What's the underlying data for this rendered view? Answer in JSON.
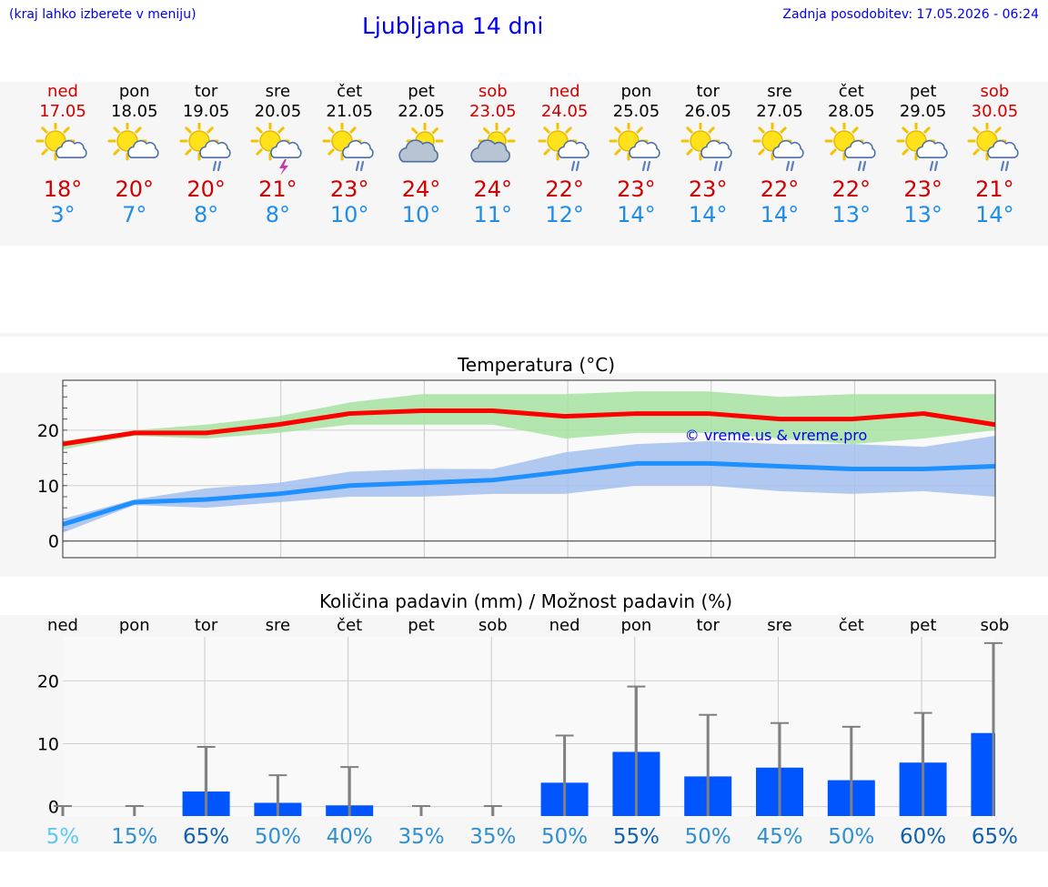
{
  "header": {
    "hint": "(kraj lahko izberete v meniju)",
    "title": "Ljubljana 14 dni",
    "updated": "Zadnja posodobitev: 17.05.2026 - 06:24"
  },
  "days": [
    {
      "name": "ned",
      "date": "17.05",
      "weekend": true,
      "icon": "partly-cloudy-icon",
      "tmax": "18°",
      "tmin": "3°"
    },
    {
      "name": "pon",
      "date": "18.05",
      "weekend": false,
      "icon": "partly-cloudy-icon",
      "tmax": "20°",
      "tmin": "7°"
    },
    {
      "name": "tor",
      "date": "19.05",
      "weekend": false,
      "icon": "cloudy-rain-icon",
      "tmax": "20°",
      "tmin": "8°"
    },
    {
      "name": "sre",
      "date": "20.05",
      "weekend": false,
      "icon": "thunderstorm-icon",
      "tmax": "21°",
      "tmin": "8°"
    },
    {
      "name": "čet",
      "date": "21.05",
      "weekend": false,
      "icon": "cloudy-rain-icon",
      "tmax": "23°",
      "tmin": "10°"
    },
    {
      "name": "pet",
      "date": "22.05",
      "weekend": false,
      "icon": "mostly-cloudy-icon",
      "tmax": "24°",
      "tmin": "10°"
    },
    {
      "name": "sob",
      "date": "23.05",
      "weekend": true,
      "icon": "mostly-cloudy-icon",
      "tmax": "24°",
      "tmin": "11°"
    },
    {
      "name": "ned",
      "date": "24.05",
      "weekend": true,
      "icon": "cloudy-rain-icon",
      "tmax": "22°",
      "tmin": "12°"
    },
    {
      "name": "pon",
      "date": "25.05",
      "weekend": false,
      "icon": "cloudy-rain-icon",
      "tmax": "23°",
      "tmin": "14°"
    },
    {
      "name": "tor",
      "date": "26.05",
      "weekend": false,
      "icon": "cloudy-rain-icon",
      "tmax": "23°",
      "tmin": "14°"
    },
    {
      "name": "sre",
      "date": "27.05",
      "weekend": false,
      "icon": "cloudy-rain-icon",
      "tmax": "22°",
      "tmin": "14°"
    },
    {
      "name": "čet",
      "date": "28.05",
      "weekend": false,
      "icon": "cloudy-rain-icon",
      "tmax": "22°",
      "tmin": "13°"
    },
    {
      "name": "pet",
      "date": "29.05",
      "weekend": false,
      "icon": "cloudy-rain-icon",
      "tmax": "23°",
      "tmin": "13°"
    },
    {
      "name": "sob",
      "date": "30.05",
      "weekend": true,
      "icon": "cloudy-rain-icon",
      "tmax": "21°",
      "tmin": "14°"
    }
  ],
  "colors": {
    "title_blue": "#0000ee",
    "weekend_red": "#d00000",
    "max_line": "#ff0000",
    "max_band": "#a6e3a1",
    "min_line": "#1e90ff",
    "min_band": "#a4bff0",
    "precip_bar": "#0055ff",
    "precip_whisker": "#808080",
    "probability_low": "#5bc8f5",
    "probability_mid": "#2f8fcf",
    "probability_high": "#1060b0"
  },
  "chart_data": [
    {
      "type": "line",
      "title": "Temperatura (°C)",
      "watermark": "© vreme.us & vreme.pro",
      "x": [
        "17.05",
        "18.05",
        "19.05",
        "20.05",
        "21.05",
        "22.05",
        "23.05",
        "24.05",
        "25.05",
        "26.05",
        "27.05",
        "28.05",
        "29.05",
        "30.05"
      ],
      "ylim": [
        -3,
        29
      ],
      "yticks": [
        0,
        10,
        20
      ],
      "grid": true,
      "series": [
        {
          "values": [
            17.5,
            19.5,
            19.5,
            21,
            23,
            23.5,
            23.5,
            22.5,
            23,
            23,
            22,
            22,
            23,
            21
          ],
          "band_low": [
            16.5,
            19,
            18.5,
            19.5,
            21,
            21,
            21,
            18.5,
            19.5,
            19.5,
            18.5,
            17.5,
            18.5,
            20
          ],
          "band_high": [
            18,
            20,
            21,
            22.5,
            25,
            26.5,
            26.5,
            26.5,
            27,
            27,
            26,
            26.5,
            26.5,
            26.5
          ]
        },
        {
          "values": [
            3,
            7,
            7.5,
            8.5,
            10,
            10.5,
            11,
            12.5,
            14,
            14,
            13.5,
            13,
            13,
            13.5
          ],
          "band_low": [
            1.5,
            6.5,
            6,
            7,
            8,
            8,
            8.5,
            8.5,
            10,
            10,
            9,
            8.5,
            9,
            8
          ],
          "band_high": [
            4,
            7.5,
            9.5,
            10.5,
            12.5,
            13,
            13,
            16,
            17.5,
            18,
            17.5,
            17.5,
            17,
            19
          ]
        }
      ]
    },
    {
      "type": "bar",
      "title": "Količina padavin (mm) / Možnost padavin (%)",
      "categories": [
        "ned",
        "pon",
        "tor",
        "sre",
        "čet",
        "pet",
        "sob",
        "ned",
        "pon",
        "tor",
        "sre",
        "čet",
        "pet",
        "sob"
      ],
      "ylim": [
        -1.5,
        27
      ],
      "yticks": [
        0,
        10,
        20
      ],
      "grid": true,
      "values": [
        0,
        0,
        2.4,
        0.6,
        0.2,
        0,
        0,
        3.8,
        8.7,
        4.8,
        6.2,
        4.2,
        7,
        11.7
      ],
      "error_high": [
        0.1,
        0.1,
        9.5,
        5,
        6.3,
        0.1,
        0.1,
        11.3,
        19.1,
        14.6,
        13.3,
        12.7,
        14.9,
        26
      ],
      "probability": [
        "5%",
        "15%",
        "65%",
        "50%",
        "40%",
        "35%",
        "35%",
        "50%",
        "55%",
        "50%",
        "45%",
        "50%",
        "60%",
        "65%"
      ],
      "probability_level": [
        "low",
        "mid",
        "high",
        "mid",
        "mid",
        "mid",
        "mid",
        "mid",
        "high",
        "mid",
        "mid",
        "mid",
        "high",
        "high"
      ]
    }
  ]
}
